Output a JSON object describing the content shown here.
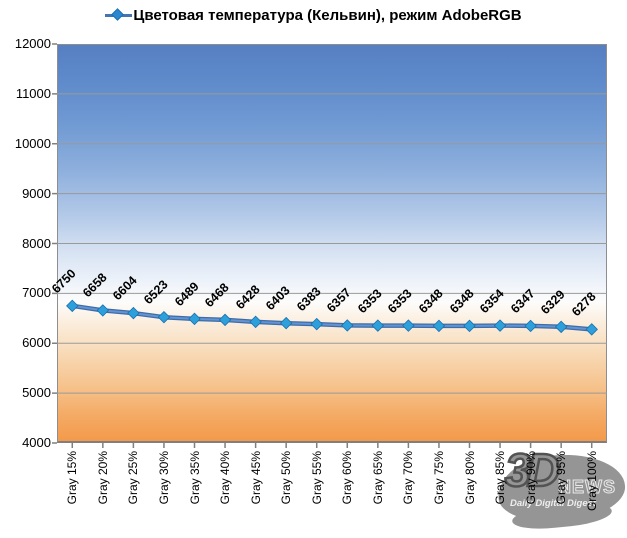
{
  "chart_data": {
    "type": "line",
    "title": "Цветовая температура (Кельвин), режим AdobeRGB",
    "categories": [
      "Gray 15%",
      "Gray 20%",
      "Gray 25%",
      "Gray 30%",
      "Gray 35%",
      "Gray 40%",
      "Gray 45%",
      "Gray 50%",
      "Gray 55%",
      "Gray 60%",
      "Gray 65%",
      "Gray 70%",
      "Gray 75%",
      "Gray 80%",
      "Gray 85%",
      "Gray 90%",
      "Gray 95%",
      "Gray 100%"
    ],
    "series": [
      {
        "name": "Цветовая температура (Кельвин), режим AdobeRGB",
        "values": [
          6750,
          6658,
          6604,
          6523,
          6489,
          6468,
          6428,
          6403,
          6383,
          6357,
          6353,
          6353,
          6348,
          6348,
          6354,
          6347,
          6329,
          6278
        ]
      }
    ],
    "xlabel": "",
    "ylabel": "",
    "ylim": [
      4000,
      12000
    ],
    "ytick_step": 1000,
    "yticks": [
      4000,
      5000,
      6000,
      7000,
      8000,
      9000,
      10000,
      11000,
      12000
    ],
    "grid": true,
    "data_labels": true,
    "data_label_rotation_deg": -45,
    "x_label_rotation_deg": -90,
    "legend_position": "top",
    "colors": {
      "line": "#3c6da8",
      "line_highlight": "#6593d2",
      "marker": "#2da0db",
      "marker_stroke": "#1b6fae",
      "grid": "#9a9a9a",
      "axis": "#7f7f7f",
      "plot_bg_top": "#567fc1",
      "plot_bg_mid": "#ffffff",
      "plot_bg_bottom": "#f39a4a"
    }
  },
  "watermark": {
    "brand_3d": "3D",
    "brand_news": "NEWS",
    "tagline": "Daily Digital Digest"
  }
}
